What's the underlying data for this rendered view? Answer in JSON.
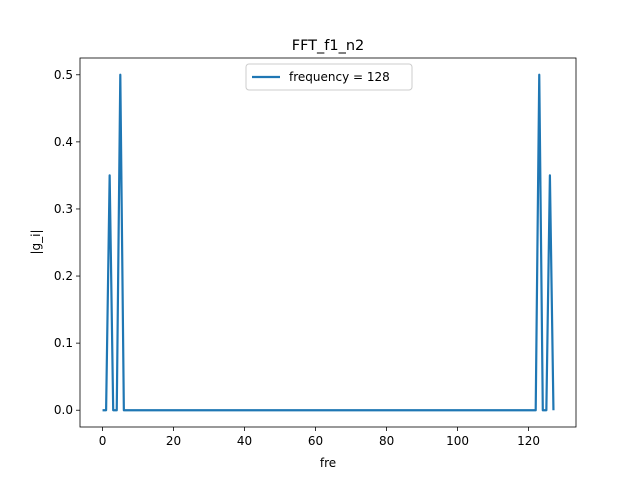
{
  "chart_data": {
    "type": "line",
    "title": "FFT_f1_n2",
    "xlabel": "fre",
    "ylabel": "|g_i|",
    "xlim": [
      -6.35,
      133.35
    ],
    "ylim": [
      -0.025,
      0.525
    ],
    "xticks": [
      0,
      20,
      40,
      60,
      80,
      100,
      120
    ],
    "yticks": [
      0.0,
      0.1,
      0.2,
      0.3,
      0.4,
      0.5
    ],
    "ytick_labels": [
      "0.0",
      "0.1",
      "0.2",
      "0.3",
      "0.4",
      "0.5"
    ],
    "grid": false,
    "legend_position": "upper center",
    "series": [
      {
        "name": "frequency = 128",
        "color": "#1f77b4",
        "x": [
          0,
          1,
          2,
          3,
          4,
          5,
          6,
          122,
          123,
          124,
          125,
          126,
          127
        ],
        "y": [
          0,
          0,
          0.35,
          0,
          0,
          0.5,
          0,
          0,
          0.5,
          0,
          0,
          0.35,
          0
        ]
      }
    ]
  }
}
